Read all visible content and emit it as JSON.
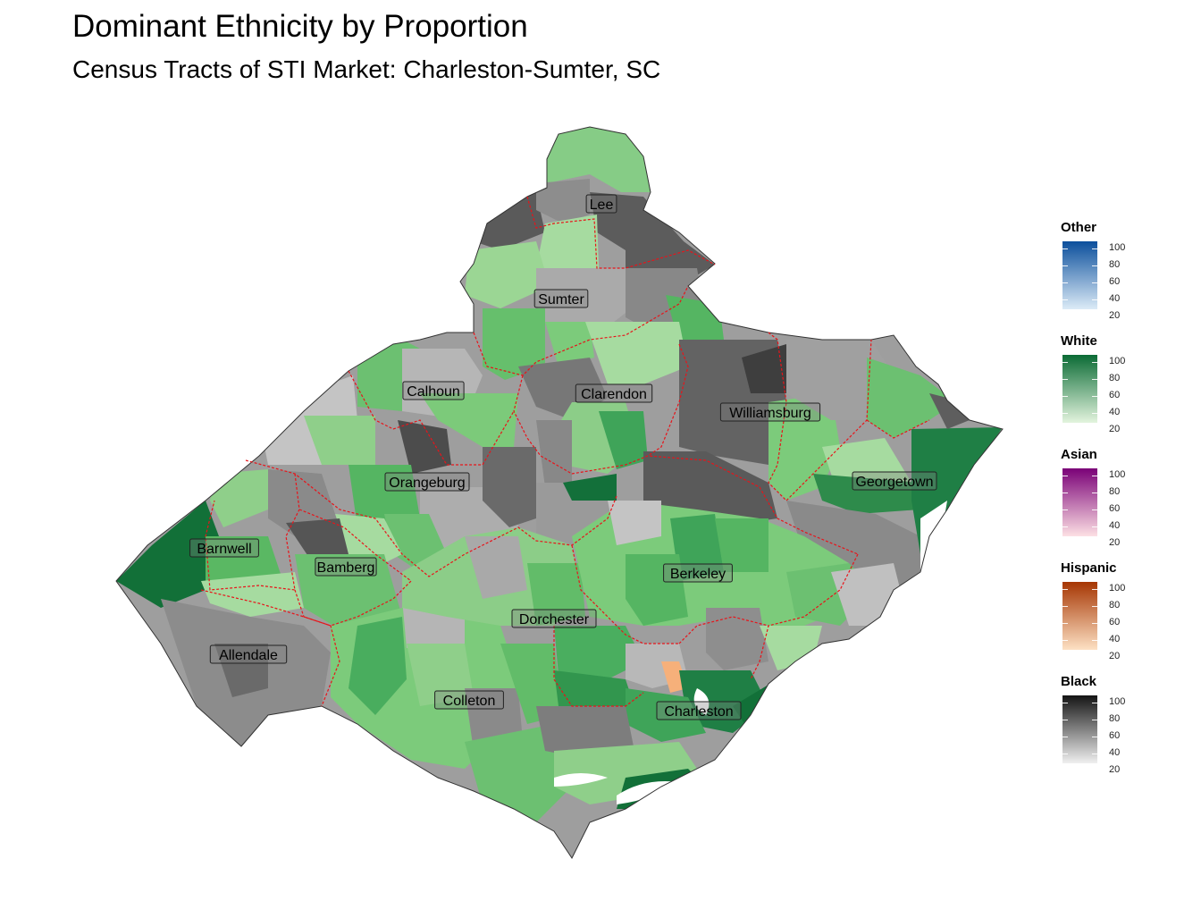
{
  "title": "Dominant Ethnicity by Proportion",
  "subtitle": "Census Tracts of STI Market: Charleston-Sumter, SC",
  "counties": [
    {
      "name": "Lee"
    },
    {
      "name": "Sumter"
    },
    {
      "name": "Calhoun"
    },
    {
      "name": "Clarendon"
    },
    {
      "name": "Williamsburg"
    },
    {
      "name": "Orangeburg"
    },
    {
      "name": "Georgetown"
    },
    {
      "name": "Barnwell"
    },
    {
      "name": "Bamberg"
    },
    {
      "name": "Berkeley"
    },
    {
      "name": "Dorchester"
    },
    {
      "name": "Allendale"
    },
    {
      "name": "Colleton"
    },
    {
      "name": "Charleston"
    }
  ],
  "legends": [
    {
      "title": "Other",
      "ramp_light": "#dcebf7",
      "ramp_dark": "#0b4f9c",
      "ticks": [
        "100",
        "80",
        "60",
        "40",
        "20"
      ]
    },
    {
      "title": "White",
      "ramp_light": "#e3f4de",
      "ramp_dark": "#0b6b35",
      "ticks": [
        "100",
        "80",
        "60",
        "40",
        "20"
      ]
    },
    {
      "title": "Asian",
      "ramp_light": "#fde0e4",
      "ramp_dark": "#7a0177",
      "ticks": [
        "100",
        "80",
        "60",
        "40",
        "20"
      ]
    },
    {
      "title": "Hispanic",
      "ramp_light": "#fde1c4",
      "ramp_dark": "#a63603",
      "ticks": [
        "100",
        "80",
        "60",
        "40",
        "20"
      ]
    },
    {
      "title": "Black",
      "ramp_light": "#f0f0f0",
      "ramp_dark": "#141414",
      "ticks": [
        "100",
        "80",
        "60",
        "40",
        "20"
      ]
    }
  ],
  "colors": {
    "boundary": "#e8141a",
    "black_light": "#c4c4c4",
    "black_mid": "#8a8a8a",
    "black_dark": "#4a4a4a",
    "white_light": "#a8dca0",
    "white_mid": "#6cc071",
    "white_dark": "#0f6f3a"
  }
}
